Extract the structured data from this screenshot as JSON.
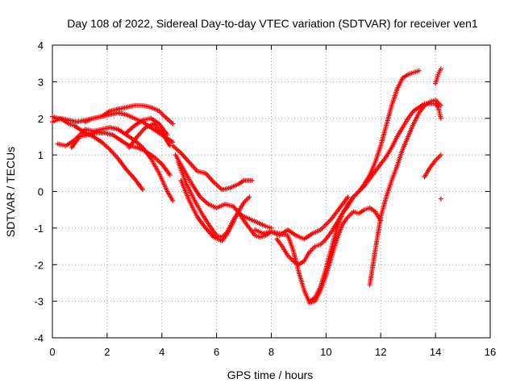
{
  "chart_data": {
    "type": "scatter",
    "title": "Day 108 of 2022, Sidereal Day-to-day VTEC variation (SDTVAR) for receiver ven1",
    "xlabel": "GPS time / hours",
    "ylabel": "SDTVAR / TECUs",
    "xlim": [
      0,
      16
    ],
    "ylim": [
      -4,
      4
    ],
    "xticks": [
      0,
      2,
      4,
      6,
      8,
      10,
      12,
      14,
      16
    ],
    "yticks": [
      -4,
      -3,
      -2,
      -1,
      0,
      1,
      2,
      3,
      4
    ],
    "xtick_labels": [
      "0",
      "2",
      "4",
      "6",
      "8",
      "10",
      "12",
      "14",
      "16"
    ],
    "ytick_labels": [
      "-4",
      "-3",
      "-2",
      "-1",
      "0",
      "1",
      "2",
      "3",
      "4"
    ],
    "grid": true,
    "marker": "+",
    "color": "#ff0000",
    "tracks": [
      {
        "x": [
          0.0,
          0.2,
          0.4,
          0.6,
          0.8,
          1.0,
          1.2,
          1.5,
          1.8,
          2.1,
          2.4,
          2.7,
          3.0,
          3.3
        ],
        "y": [
          2.05,
          2.0,
          1.95,
          1.85,
          1.8,
          1.7,
          1.6,
          1.5,
          1.35,
          1.15,
          0.9,
          0.6,
          0.35,
          0.05
        ]
      },
      {
        "x": [
          0.0,
          0.3,
          0.6,
          0.9,
          1.2,
          1.5,
          1.8,
          2.1,
          2.4,
          2.7,
          3.0,
          3.3,
          3.6,
          3.9,
          4.2,
          4.4
        ],
        "y": [
          1.9,
          2.0,
          1.95,
          1.9,
          1.95,
          2.0,
          2.05,
          2.1,
          2.15,
          2.1,
          2.0,
          1.9,
          1.75,
          1.6,
          1.45,
          1.35
        ]
      },
      {
        "x": [
          0.2,
          0.5,
          0.8,
          1.0,
          1.2,
          1.5,
          1.8,
          2.1,
          2.4,
          2.7,
          3.0,
          3.3,
          3.6,
          3.9,
          4.2,
          4.4
        ],
        "y": [
          1.3,
          1.25,
          1.4,
          1.55,
          1.7,
          1.65,
          1.7,
          1.75,
          1.7,
          1.55,
          1.4,
          1.2,
          0.9,
          0.5,
          0.0,
          -0.25
        ]
      },
      {
        "x": [
          0.7,
          1.0,
          1.3,
          1.6,
          1.9,
          2.2,
          2.5,
          2.8,
          3.1,
          3.4,
          3.7,
          4.0,
          4.3
        ],
        "y": [
          1.2,
          1.5,
          1.55,
          1.6,
          1.6,
          1.55,
          1.4,
          1.25,
          1.2,
          1.1,
          0.95,
          0.75,
          0.45
        ]
      },
      {
        "x": [
          1.2,
          1.5,
          1.8,
          2.1,
          2.4,
          2.7,
          3.0,
          3.3,
          3.6,
          3.9,
          4.1,
          4.4
        ],
        "y": [
          1.9,
          2.0,
          2.05,
          2.2,
          2.25,
          2.3,
          2.35,
          2.35,
          2.3,
          2.2,
          2.05,
          1.85
        ]
      },
      {
        "x": [
          2.7,
          3.0,
          3.3,
          3.6,
          3.9,
          4.2
        ],
        "y": [
          1.6,
          1.8,
          1.95,
          2.0,
          1.85,
          1.55
        ]
      },
      {
        "x": [
          2.8,
          3.1,
          3.4,
          3.7,
          4.0,
          4.3
        ],
        "y": [
          1.2,
          1.5,
          1.75,
          1.85,
          1.6,
          1.25
        ]
      },
      {
        "x": [
          4.4,
          4.7,
          5.0,
          5.3,
          5.6,
          5.9,
          6.2,
          6.5,
          6.8,
          7.0,
          7.3
        ],
        "y": [
          1.25,
          1.05,
          0.8,
          0.55,
          0.5,
          0.25,
          0.05,
          0.1,
          0.2,
          0.3,
          0.3
        ]
      },
      {
        "x": [
          4.5,
          4.8,
          5.1,
          5.4,
          5.7,
          6.0,
          6.3,
          6.6,
          6.9,
          7.2,
          7.5,
          7.8,
          8.0
        ],
        "y": [
          1.0,
          0.6,
          0.2,
          -0.15,
          -0.35,
          -0.45,
          -0.35,
          -0.4,
          -0.65,
          -0.75,
          -0.85,
          -0.95,
          -1.0
        ]
      },
      {
        "x": [
          4.6,
          4.9,
          5.2,
          5.5,
          5.8,
          6.0,
          6.2,
          6.4,
          6.6,
          6.8,
          7.0,
          7.2,
          7.4,
          7.6,
          7.8,
          8.0,
          8.3,
          8.6
        ],
        "y": [
          0.8,
          0.2,
          -0.25,
          -0.65,
          -1.0,
          -1.2,
          -1.25,
          -1.1,
          -0.8,
          -0.55,
          -0.8,
          -1.0,
          -1.2,
          -1.25,
          -1.2,
          -1.1,
          -1.15,
          -1.2
        ]
      },
      {
        "x": [
          4.7,
          5.0,
          5.3,
          5.6,
          5.9,
          6.2,
          6.4,
          6.6,
          6.8,
          7.0,
          7.2
        ],
        "y": [
          0.3,
          -0.25,
          -0.7,
          -1.0,
          -1.25,
          -1.35,
          -1.15,
          -0.85,
          -0.55,
          -0.3,
          -0.15
        ]
      },
      {
        "x": [
          8.6,
          8.8,
          9.0,
          9.2,
          9.4,
          9.6,
          9.8,
          10.0,
          10.2,
          10.4,
          10.6,
          10.8,
          11.0,
          11.2,
          11.4,
          11.6,
          11.8,
          12.0
        ],
        "y": [
          -1.2,
          -1.6,
          -2.2,
          -2.7,
          -3.05,
          -3.0,
          -2.7,
          -2.3,
          -1.8,
          -1.3,
          -0.9,
          -0.7,
          -0.55,
          -0.6,
          -0.5,
          -0.45,
          -0.55,
          -0.8
        ]
      },
      {
        "x": [
          8.2,
          8.4,
          8.6,
          8.8,
          9.0,
          9.2,
          9.4,
          9.6,
          9.8,
          10.0,
          10.2,
          10.4,
          10.6,
          10.8,
          11.0,
          11.2,
          11.4,
          11.6,
          11.8,
          12.0,
          12.2,
          12.4,
          12.6,
          12.8,
          13.0,
          13.2,
          13.4
        ],
        "y": [
          -1.3,
          -1.5,
          -1.75,
          -1.9,
          -2.0,
          -1.9,
          -1.65,
          -1.5,
          -1.45,
          -1.3,
          -1.1,
          -0.85,
          -0.6,
          -0.4,
          -0.15,
          0.0,
          0.2,
          0.45,
          0.8,
          1.25,
          1.8,
          2.35,
          2.8,
          3.1,
          3.2,
          3.25,
          3.3
        ]
      },
      {
        "x": [
          7.4,
          7.7,
          8.0,
          8.3,
          8.6,
          8.9,
          9.2,
          9.5,
          9.8,
          10.0,
          10.2,
          10.4,
          10.6,
          10.8
        ],
        "y": [
          -1.05,
          -1.15,
          -1.1,
          -1.2,
          -1.05,
          -1.2,
          -1.3,
          -1.15,
          -1.05,
          -0.9,
          -0.75,
          -0.55,
          -0.35,
          -0.15
        ]
      },
      {
        "x": [
          9.4,
          9.6,
          9.8,
          10.0,
          10.2,
          10.4,
          10.6,
          10.8,
          11.0,
          11.2,
          11.4,
          11.6,
          11.8,
          12.0,
          12.2,
          12.4,
          12.6,
          12.8,
          13.0,
          13.2,
          13.4,
          13.6,
          13.8,
          14.0,
          14.1,
          14.2
        ],
        "y": [
          -3.0,
          -2.9,
          -2.6,
          -2.1,
          -1.55,
          -1.0,
          -0.6,
          -0.35,
          -0.15,
          0.0,
          0.15,
          0.35,
          0.55,
          0.75,
          0.95,
          1.2,
          1.5,
          1.75,
          2.0,
          2.2,
          2.3,
          2.4,
          2.4,
          2.4,
          2.3,
          2.0
        ]
      },
      {
        "x": [
          11.6,
          11.8,
          12.0,
          12.2,
          12.4,
          12.6,
          12.8,
          13.0,
          13.2,
          13.4,
          13.6,
          13.8,
          14.0,
          14.2
        ],
        "y": [
          -2.55,
          -1.6,
          -0.7,
          -0.15,
          0.3,
          0.7,
          1.15,
          1.5,
          1.85,
          2.15,
          2.35,
          2.45,
          2.5,
          2.35
        ]
      },
      {
        "x": [
          13.6,
          13.8,
          14.0,
          14.2
        ],
        "y": [
          0.4,
          0.65,
          0.85,
          1.0
        ]
      },
      {
        "x": [
          14.0,
          14.1,
          14.2
        ],
        "y": [
          2.95,
          3.2,
          3.35
        ]
      },
      {
        "x": [
          14.2
        ],
        "y": [
          -0.2
        ]
      }
    ]
  }
}
